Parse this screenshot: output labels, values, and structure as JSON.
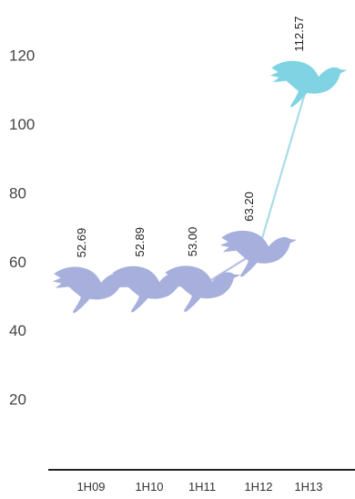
{
  "chart_data": {
    "type": "line",
    "categories": [
      "1H09",
      "1H10",
      "1H11",
      "1H12",
      "1H13"
    ],
    "values": [
      52.69,
      52.89,
      53.0,
      63.2,
      112.57
    ],
    "value_labels": [
      "52.69",
      "52.89",
      "53.00",
      "63.20",
      "112.57"
    ],
    "y_ticks": [
      20,
      40,
      60,
      80,
      100,
      120
    ],
    "ylim": [
      0,
      130
    ],
    "grid": false,
    "marker": "bird-icon",
    "colors": {
      "primary": "#a7b0dc",
      "highlight": "#7fd3e3",
      "connector_primary": "#b8bfe4",
      "connector_highlight": "#a9dde7",
      "axis": "#222222"
    }
  }
}
